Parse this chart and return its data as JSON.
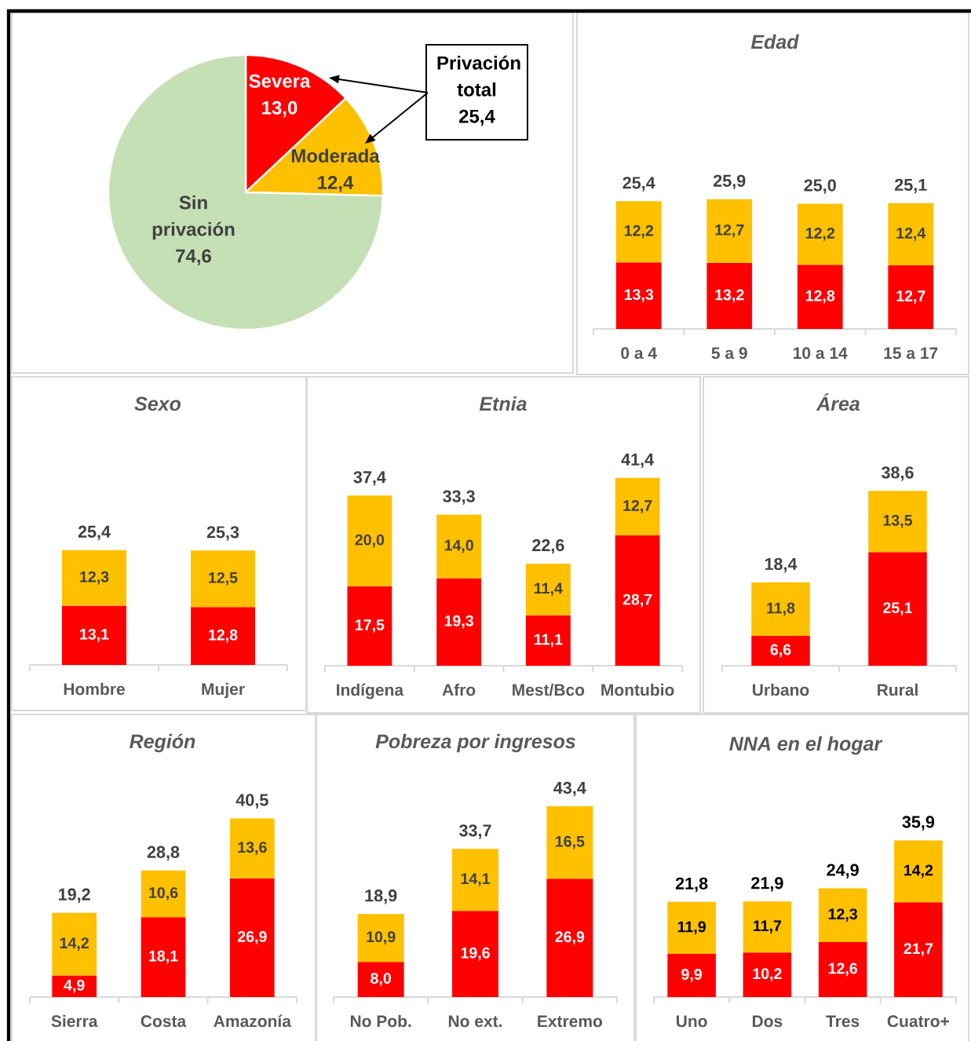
{
  "chart_data": [
    {
      "type": "pie",
      "categories": [
        "Severa",
        "Moderada",
        "Sin privación"
      ],
      "values": [
        13.0,
        12.4,
        74.6
      ],
      "colors": [
        "#ff0000",
        "#ffc000",
        "#c5e0b4"
      ],
      "value_labels": [
        "13,0",
        "12,4",
        "74,6"
      ],
      "annotations": [
        "Privación total 25,4"
      ]
    },
    {
      "type": "bar",
      "title": "Edad",
      "stacked": true,
      "categories": [
        "0 a 4",
        "5 a 9",
        "10 a 14",
        "15 a 17"
      ],
      "series": [
        {
          "color": "#ff0000",
          "values": [
            13.3,
            13.2,
            12.8,
            12.7
          ],
          "value_labels": [
            "13,3",
            "13,2",
            "12,8",
            "12,7"
          ]
        },
        {
          "color": "#ffc000",
          "values": [
            12.2,
            12.7,
            12.2,
            12.4
          ],
          "value_labels": [
            "12,2",
            "12,7",
            "12,2",
            "12,4"
          ]
        }
      ],
      "totals": [
        "25,4",
        "25,9",
        "25,0",
        "25,1"
      ]
    },
    {
      "type": "bar",
      "title": "Sexo",
      "stacked": true,
      "categories": [
        "Hombre",
        "Mujer"
      ],
      "series": [
        {
          "color": "#ff0000",
          "values": [
            13.1,
            12.8
          ],
          "value_labels": [
            "13,1",
            "12,8"
          ]
        },
        {
          "color": "#ffc000",
          "values": [
            12.3,
            12.5
          ],
          "value_labels": [
            "12,3",
            "12,5"
          ]
        }
      ],
      "totals": [
        "25,4",
        "25,3"
      ]
    },
    {
      "type": "bar",
      "title": "Etnia",
      "stacked": true,
      "categories": [
        "Indígena",
        "Afro",
        "Mest/Bco",
        "Montubio"
      ],
      "series": [
        {
          "color": "#ff0000",
          "values": [
            17.5,
            19.3,
            11.1,
            28.7
          ],
          "value_labels": [
            "17,5",
            "19,3",
            "11,1",
            "28,7"
          ]
        },
        {
          "color": "#ffc000",
          "values": [
            20.0,
            14.0,
            11.4,
            12.7
          ],
          "value_labels": [
            "20,0",
            "14,0",
            "11,4",
            "12,7"
          ]
        }
      ],
      "totals": [
        "37,4",
        "33,3",
        "22,6",
        "41,4"
      ]
    },
    {
      "type": "bar",
      "title": "Área",
      "stacked": true,
      "categories": [
        "Urbano",
        "Rural"
      ],
      "series": [
        {
          "color": "#ff0000",
          "values": [
            6.6,
            25.1
          ],
          "value_labels": [
            "6,6",
            "25,1"
          ]
        },
        {
          "color": "#ffc000",
          "values": [
            11.8,
            13.5
          ],
          "value_labels": [
            "11,8",
            "13,5"
          ]
        }
      ],
      "totals": [
        "18,4",
        "38,6"
      ]
    },
    {
      "type": "bar",
      "title": "Región",
      "stacked": true,
      "categories": [
        "Sierra",
        "Costa",
        "Amazonía"
      ],
      "series": [
        {
          "color": "#ff0000",
          "values": [
            4.9,
            18.1,
            26.9
          ],
          "value_labels": [
            "4,9",
            "18,1",
            "26,9"
          ]
        },
        {
          "color": "#ffc000",
          "values": [
            14.2,
            10.6,
            13.6
          ],
          "value_labels": [
            "14,2",
            "10,6",
            "13,6"
          ]
        }
      ],
      "totals": [
        "19,2",
        "28,8",
        "40,5"
      ]
    },
    {
      "type": "bar",
      "title": "Pobreza por ingresos",
      "stacked": true,
      "categories": [
        "No Pob.",
        "No ext.",
        "Extremo"
      ],
      "series": [
        {
          "color": "#ff0000",
          "values": [
            8.0,
            19.6,
            26.9
          ],
          "value_labels": [
            "8,0",
            "19,6",
            "26,9"
          ]
        },
        {
          "color": "#ffc000",
          "values": [
            10.9,
            14.1,
            16.5
          ],
          "value_labels": [
            "10,9",
            "14,1",
            "16,5"
          ]
        }
      ],
      "totals": [
        "18,9",
        "33,7",
        "43,4"
      ]
    },
    {
      "type": "bar",
      "title": "NNA en el hogar",
      "stacked": true,
      "categories": [
        "Uno",
        "Dos",
        "Tres",
        "Cuatro+"
      ],
      "series": [
        {
          "color": "#ff0000",
          "values": [
            9.9,
            10.2,
            12.6,
            21.7
          ],
          "value_labels": [
            "9,9",
            "10,2",
            "12,6",
            "21,7"
          ]
        },
        {
          "color": "#ffc000",
          "values": [
            11.9,
            11.7,
            12.3,
            14.2
          ],
          "value_labels": [
            "11,9",
            "11,7",
            "12,3",
            "14,2"
          ]
        }
      ],
      "totals": [
        "21,8",
        "21,9",
        "24,9",
        "35,9"
      ]
    }
  ]
}
